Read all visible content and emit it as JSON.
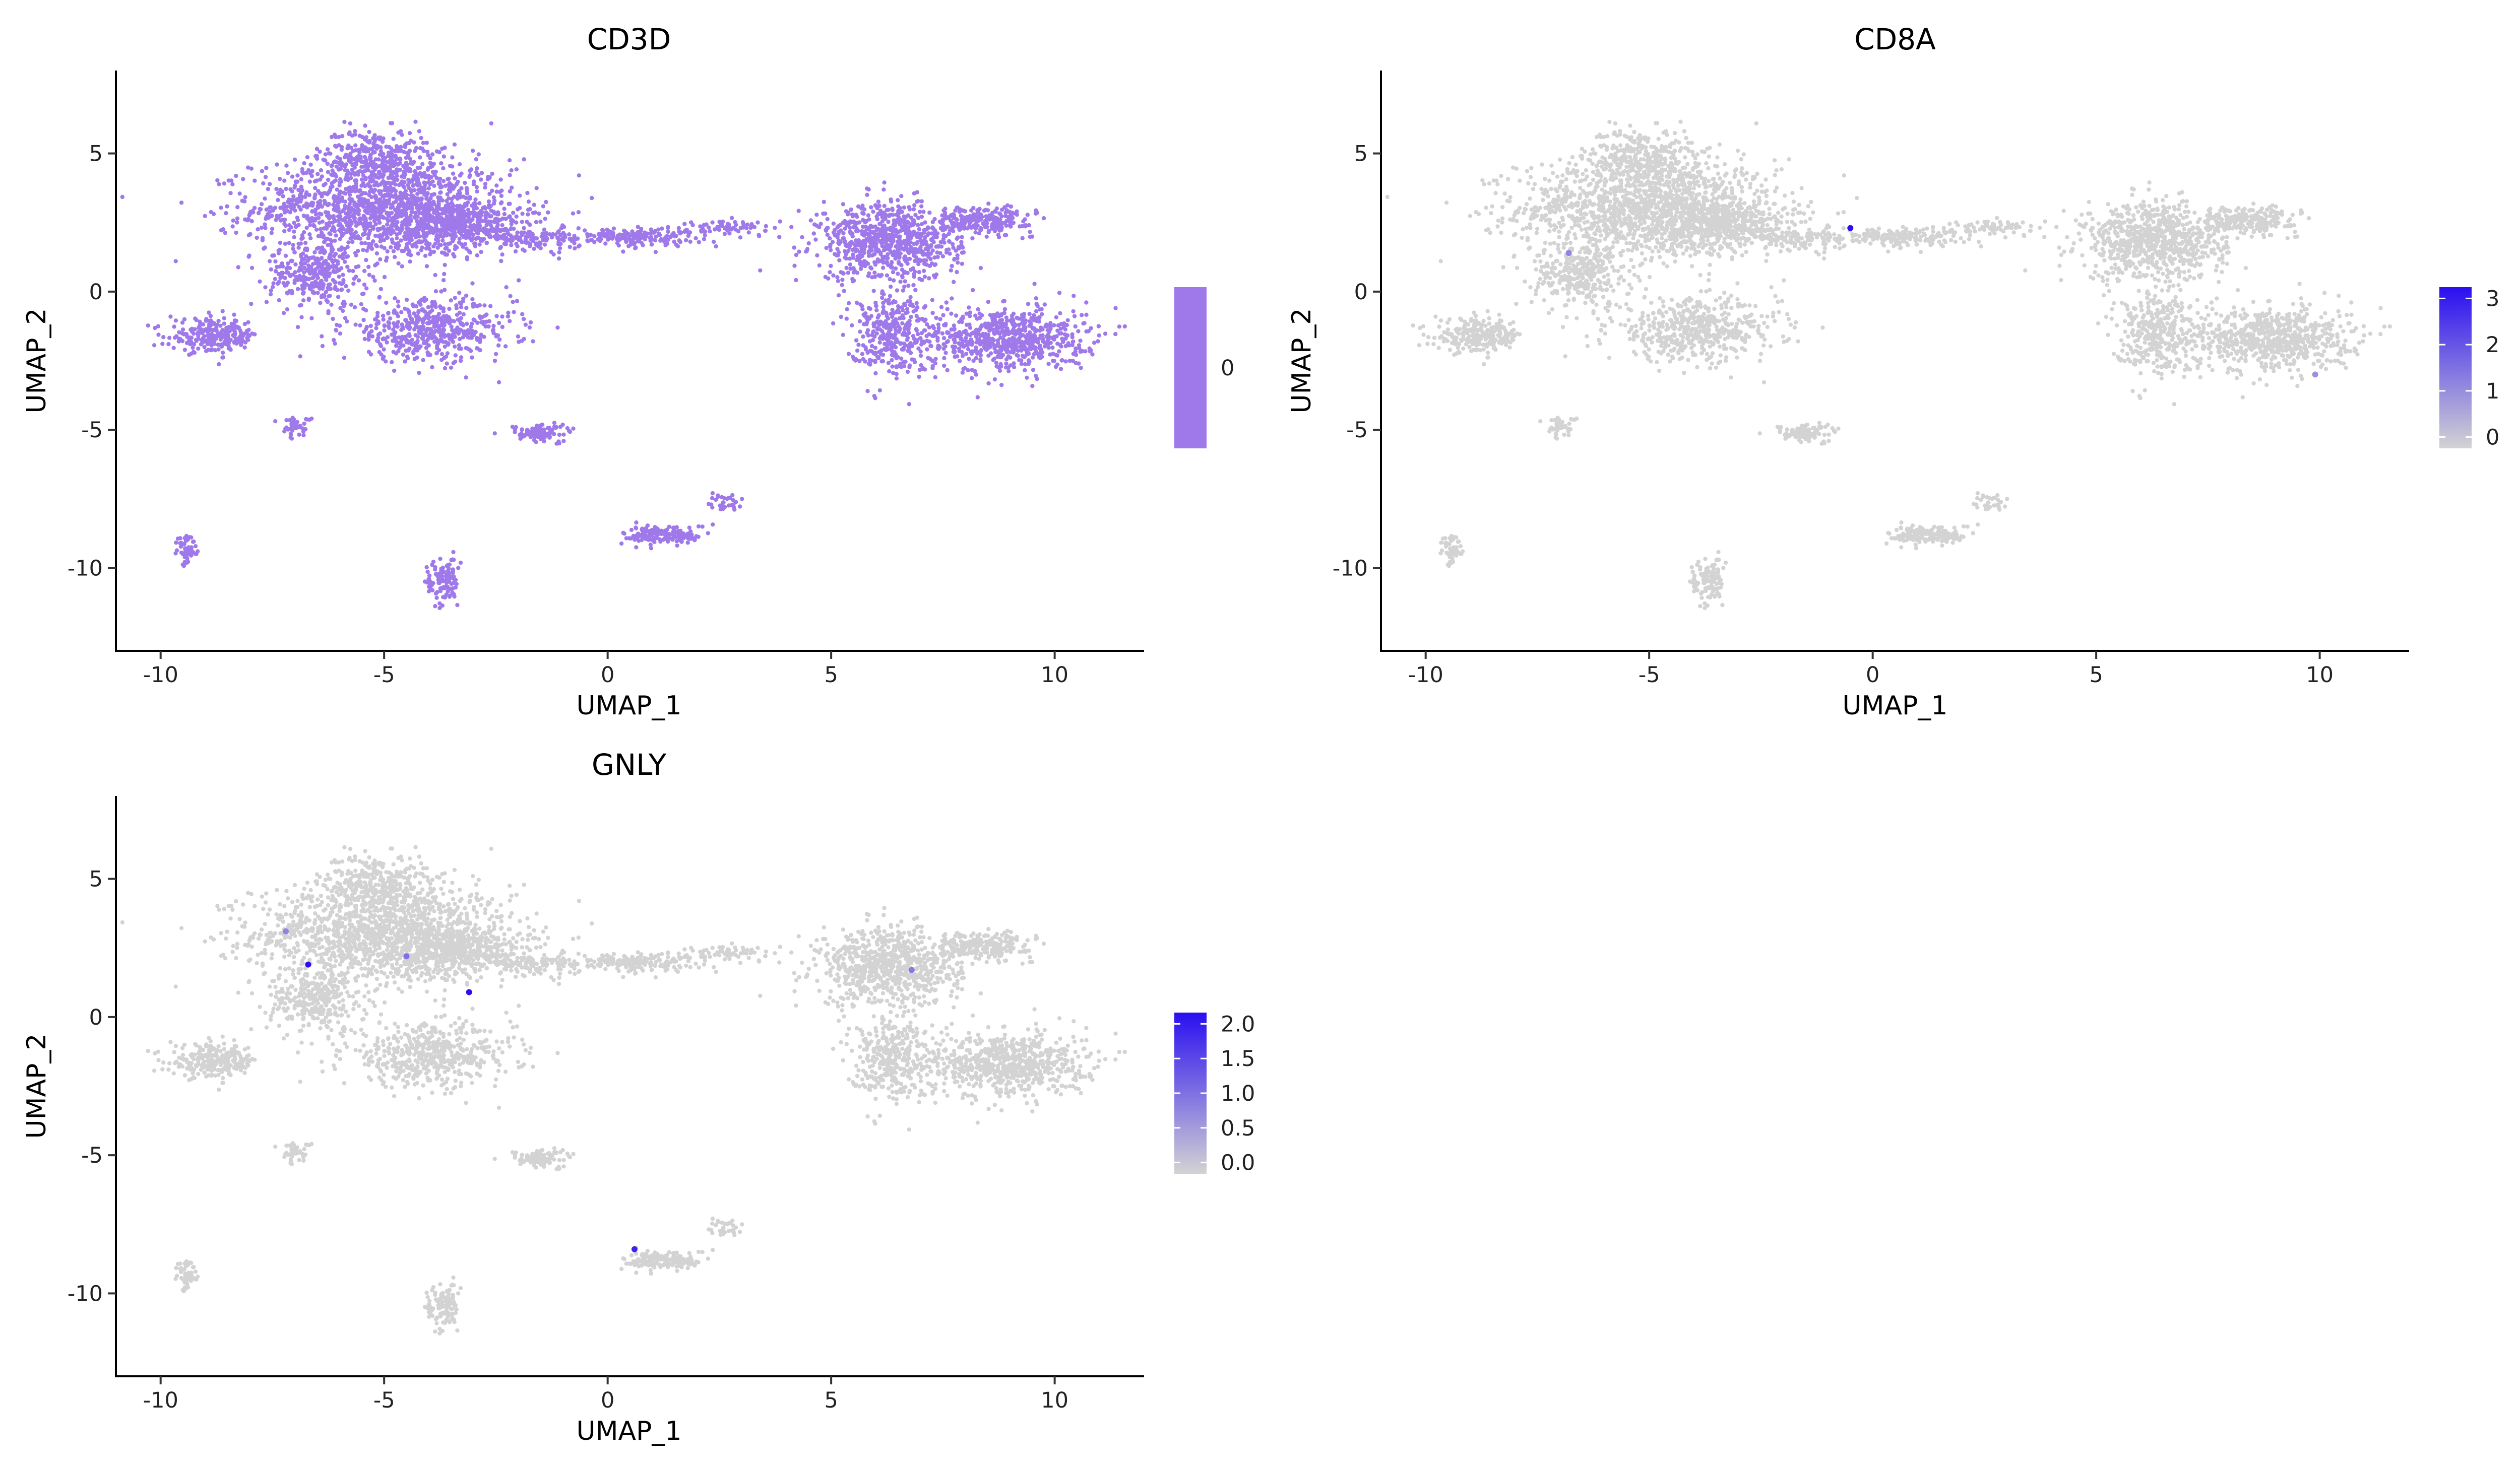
{
  "chart_data": [
    {
      "type": "scatter",
      "title": "CD3D",
      "xlabel": "UMAP_1",
      "ylabel": "UMAP_2",
      "xlim": [
        -11,
        12
      ],
      "ylim": [
        -13,
        8
      ],
      "xticks": [
        -10,
        -5,
        0,
        5,
        10
      ],
      "yticks": [
        5,
        0,
        -5,
        -10
      ],
      "grid": false,
      "legend": {
        "placement": "right",
        "type": "colorbar",
        "ticks": [
          "0"
        ],
        "low_color": "#9f79ea",
        "high_color": "#9f79ea"
      },
      "point_color": "#9f79ea",
      "highlights": []
    },
    {
      "type": "scatter",
      "title": "CD8A",
      "xlabel": "UMAP_1",
      "ylabel": "UMAP_2",
      "xlim": [
        -11,
        12
      ],
      "ylim": [
        -13,
        8
      ],
      "xticks": [
        -10,
        -5,
        0,
        5,
        10
      ],
      "yticks": [
        5,
        0,
        -5,
        -10
      ],
      "grid": false,
      "legend": {
        "placement": "right",
        "type": "colorbar",
        "ticks": [
          "3",
          "2",
          "1",
          "0"
        ],
        "low_color": "#d3d3d3",
        "high_color": "#2a0ff0"
      },
      "point_color": "#d3d3d3",
      "highlights": [
        {
          "x": -0.5,
          "y": 2.3,
          "value": 3.5
        },
        {
          "x": -6.8,
          "y": 1.4,
          "value": 1.2
        },
        {
          "x": 9.9,
          "y": -3.0,
          "value": 1.0
        }
      ]
    },
    {
      "type": "scatter",
      "title": "GNLY",
      "xlabel": "UMAP_1",
      "ylabel": "UMAP_2",
      "xlim": [
        -11,
        12
      ],
      "ylim": [
        -13,
        8
      ],
      "xticks": [
        -10,
        -5,
        0,
        5,
        10
      ],
      "yticks": [
        5,
        0,
        -5,
        -10
      ],
      "grid": false,
      "legend": {
        "placement": "right",
        "type": "colorbar",
        "ticks": [
          "2.0",
          "1.5",
          "1.0",
          "0.5",
          "0.0"
        ],
        "low_color": "#d3d3d3",
        "high_color": "#2a0ff0"
      },
      "point_color": "#d3d3d3",
      "highlights": [
        {
          "x": -6.7,
          "y": 1.9,
          "value": 2.1
        },
        {
          "x": -3.1,
          "y": 0.9,
          "value": 2.0
        },
        {
          "x": -4.5,
          "y": 2.2,
          "value": 1.0
        },
        {
          "x": -7.2,
          "y": 3.1,
          "value": 0.8
        },
        {
          "x": 0.6,
          "y": -8.4,
          "value": 1.8
        },
        {
          "x": 6.8,
          "y": 1.7,
          "value": 0.9
        }
      ]
    }
  ]
}
